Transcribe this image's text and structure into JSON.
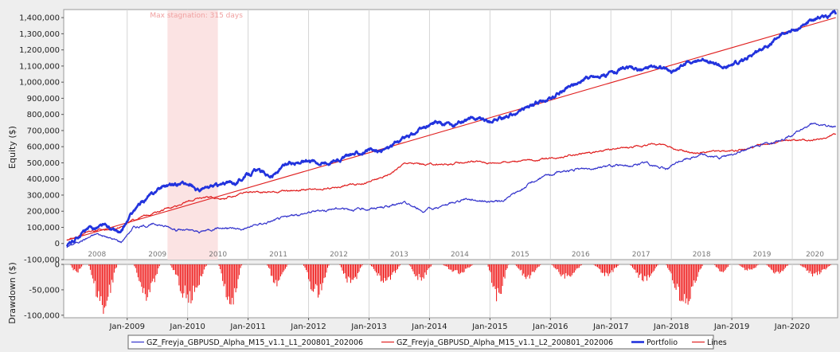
{
  "chart_data": [
    {
      "type": "line",
      "ylabel": "Equity ($)",
      "ylim": [
        -100000,
        1450000
      ],
      "yticks": [
        -100000,
        0,
        100000,
        200000,
        300000,
        400000,
        500000,
        600000,
        700000,
        800000,
        900000,
        1000000,
        1100000,
        1200000,
        1300000,
        1400000
      ],
      "ytick_labels": [
        "-100,000",
        "0",
        "100,000",
        "200,000",
        "300,000",
        "400,000",
        "500,000",
        "600,000",
        "700,000",
        "800,000",
        "900,000",
        "1,000,000",
        "1,100,000",
        "1,200,000",
        "1,300,000",
        "1,400,000"
      ],
      "year_labels": [
        "2008",
        "2009",
        "2010",
        "2011",
        "2012",
        "2013",
        "2014",
        "2015",
        "2016",
        "2017",
        "2018",
        "2019",
        "2020"
      ],
      "annotation": "Max stagnation: 315 days",
      "stagnation_span": [
        "2009-09",
        "2010-07"
      ],
      "grid": true,
      "xlim": [
        2007.95,
        2020.75
      ],
      "series": [
        {
          "name": "GZ_Freyja_GBPUSD_Alpha_M15_v1.1_L1_200801_202006",
          "color": "#3333cc",
          "x": [
            2008.0,
            2008.5,
            2008.9,
            2009.1,
            2009.5,
            2009.8,
            2010.2,
            2010.5,
            2010.9,
            2011.3,
            2011.7,
            2012.1,
            2012.5,
            2012.9,
            2013.3,
            2013.6,
            2013.9,
            2014.3,
            2014.6,
            2015.0,
            2015.2,
            2015.5,
            2015.8,
            2016.1,
            2016.5,
            2016.9,
            2017.3,
            2017.6,
            2017.9,
            2018.2,
            2018.5,
            2018.8,
            2019.1,
            2019.4,
            2019.7,
            2020.0,
            2020.3,
            2020.5,
            2020.72
          ],
          "y": [
            -20000,
            60000,
            10000,
            100000,
            120000,
            90000,
            70000,
            100000,
            90000,
            130000,
            170000,
            200000,
            220000,
            210000,
            230000,
            250000,
            200000,
            240000,
            280000,
            260000,
            260000,
            330000,
            400000,
            440000,
            460000,
            480000,
            480000,
            500000,
            460000,
            520000,
            550000,
            530000,
            560000,
            610000,
            630000,
            670000,
            740000,
            730000,
            725000
          ]
        },
        {
          "name": "GZ_Freyja_GBPUSD_Alpha_M15_v1.1_L2_200801_202006",
          "color": "#e02020",
          "x": [
            2008.0,
            2008.4,
            2008.8,
            2009.2,
            2009.6,
            2010.0,
            2010.3,
            2010.6,
            2011.0,
            2011.4,
            2011.8,
            2012.2,
            2012.6,
            2013.0,
            2013.3,
            2013.6,
            2013.9,
            2014.3,
            2014.7,
            2015.0,
            2015.4,
            2015.8,
            2016.2,
            2016.6,
            2017.0,
            2017.4,
            2017.8,
            2018.1,
            2018.4,
            2018.8,
            2019.2,
            2019.6,
            2020.0,
            2020.4,
            2020.72
          ],
          "y": [
            20000,
            80000,
            90000,
            160000,
            210000,
            260000,
            290000,
            280000,
            320000,
            320000,
            330000,
            330000,
            360000,
            380000,
            420000,
            500000,
            490000,
            490000,
            510000,
            500000,
            510000,
            520000,
            540000,
            560000,
            580000,
            600000,
            620000,
            580000,
            560000,
            570000,
            580000,
            620000,
            640000,
            640000,
            680000
          ]
        },
        {
          "name": "Portfolio",
          "color": "#2233dd",
          "x": [
            2008.0,
            2008.3,
            2008.6,
            2008.9,
            2009.1,
            2009.3,
            2009.6,
            2009.9,
            2010.2,
            2010.5,
            2010.8,
            2011.1,
            2011.4,
            2011.7,
            2012.0,
            2012.3,
            2012.6,
            2012.9,
            2013.2,
            2013.5,
            2013.8,
            2014.1,
            2014.4,
            2014.7,
            2015.0,
            2015.2,
            2015.5,
            2015.8,
            2016.0,
            2016.3,
            2016.6,
            2016.9,
            2017.2,
            2017.5,
            2017.8,
            2018.0,
            2018.3,
            2018.6,
            2018.9,
            2019.2,
            2019.5,
            2019.8,
            2020.1,
            2020.4,
            2020.72
          ],
          "y": [
            -20000,
            80000,
            110000,
            60000,
            200000,
            270000,
            360000,
            380000,
            330000,
            360000,
            380000,
            450000,
            420000,
            500000,
            520000,
            500000,
            540000,
            570000,
            570000,
            640000,
            690000,
            750000,
            730000,
            780000,
            760000,
            780000,
            820000,
            880000,
            900000,
            970000,
            1030000,
            1040000,
            1080000,
            1080000,
            1100000,
            1060000,
            1130000,
            1140000,
            1080000,
            1140000,
            1210000,
            1290000,
            1330000,
            1400000,
            1420000
          ]
        },
        {
          "name": "Lines",
          "color": "#e02020",
          "x": [
            2008.0,
            2020.72
          ],
          "y": [
            20000,
            1400000
          ]
        }
      ]
    },
    {
      "type": "bar",
      "ylabel": "Drawdown ($)",
      "ylim": [
        -105000,
        0
      ],
      "yticks": [
        0,
        -50000,
        -100000
      ],
      "ytick_labels": [
        "0",
        "-50,000",
        "-100,000"
      ],
      "xtick_labels": [
        "Jan-2009",
        "Jan-2010",
        "Jan-2011",
        "Jan-2012",
        "Jan-2013",
        "Jan-2014",
        "Jan-2015",
        "Jan-2016",
        "Jan-2017",
        "Jan-2018",
        "Jan-2019",
        "Jan-2020"
      ],
      "xticks": [
        2009.0,
        2010.0,
        2011.0,
        2012.0,
        2013.0,
        2014.0,
        2015.0,
        2016.0,
        2017.0,
        2018.0,
        2019.0,
        2020.0
      ],
      "color": "#ee1111",
      "episodes": [
        {
          "x": [
            2008.05,
            2008.3
          ],
          "depth": 20000
        },
        {
          "x": [
            2008.35,
            2008.9
          ],
          "depth": 100000
        },
        {
          "x": [
            2009.1,
            2009.6
          ],
          "depth": 75000
        },
        {
          "x": [
            2009.7,
            2010.4
          ],
          "depth": 80000
        },
        {
          "x": [
            2010.5,
            2010.95
          ],
          "depth": 90000
        },
        {
          "x": [
            2011.3,
            2011.7
          ],
          "depth": 45000
        },
        {
          "x": [
            2011.9,
            2012.4
          ],
          "depth": 70000
        },
        {
          "x": [
            2012.5,
            2012.95
          ],
          "depth": 45000
        },
        {
          "x": [
            2013.0,
            2013.6
          ],
          "depth": 40000
        },
        {
          "x": [
            2013.65,
            2014.1
          ],
          "depth": 35000
        },
        {
          "x": [
            2014.2,
            2014.8
          ],
          "depth": 20000
        },
        {
          "x": [
            2014.95,
            2015.35
          ],
          "depth": 75000
        },
        {
          "x": [
            2015.4,
            2015.9
          ],
          "depth": 30000
        },
        {
          "x": [
            2016.0,
            2016.6
          ],
          "depth": 30000
        },
        {
          "x": [
            2016.7,
            2017.2
          ],
          "depth": 25000
        },
        {
          "x": [
            2017.3,
            2017.85
          ],
          "depth": 35000
        },
        {
          "x": [
            2017.9,
            2018.6
          ],
          "depth": 85000
        },
        {
          "x": [
            2018.7,
            2019.0
          ],
          "depth": 20000
        },
        {
          "x": [
            2019.1,
            2019.5
          ],
          "depth": 15000
        },
        {
          "x": [
            2019.55,
            2020.0
          ],
          "depth": 20000
        },
        {
          "x": [
            2020.1,
            2020.72
          ],
          "depth": 25000
        }
      ]
    }
  ]
}
